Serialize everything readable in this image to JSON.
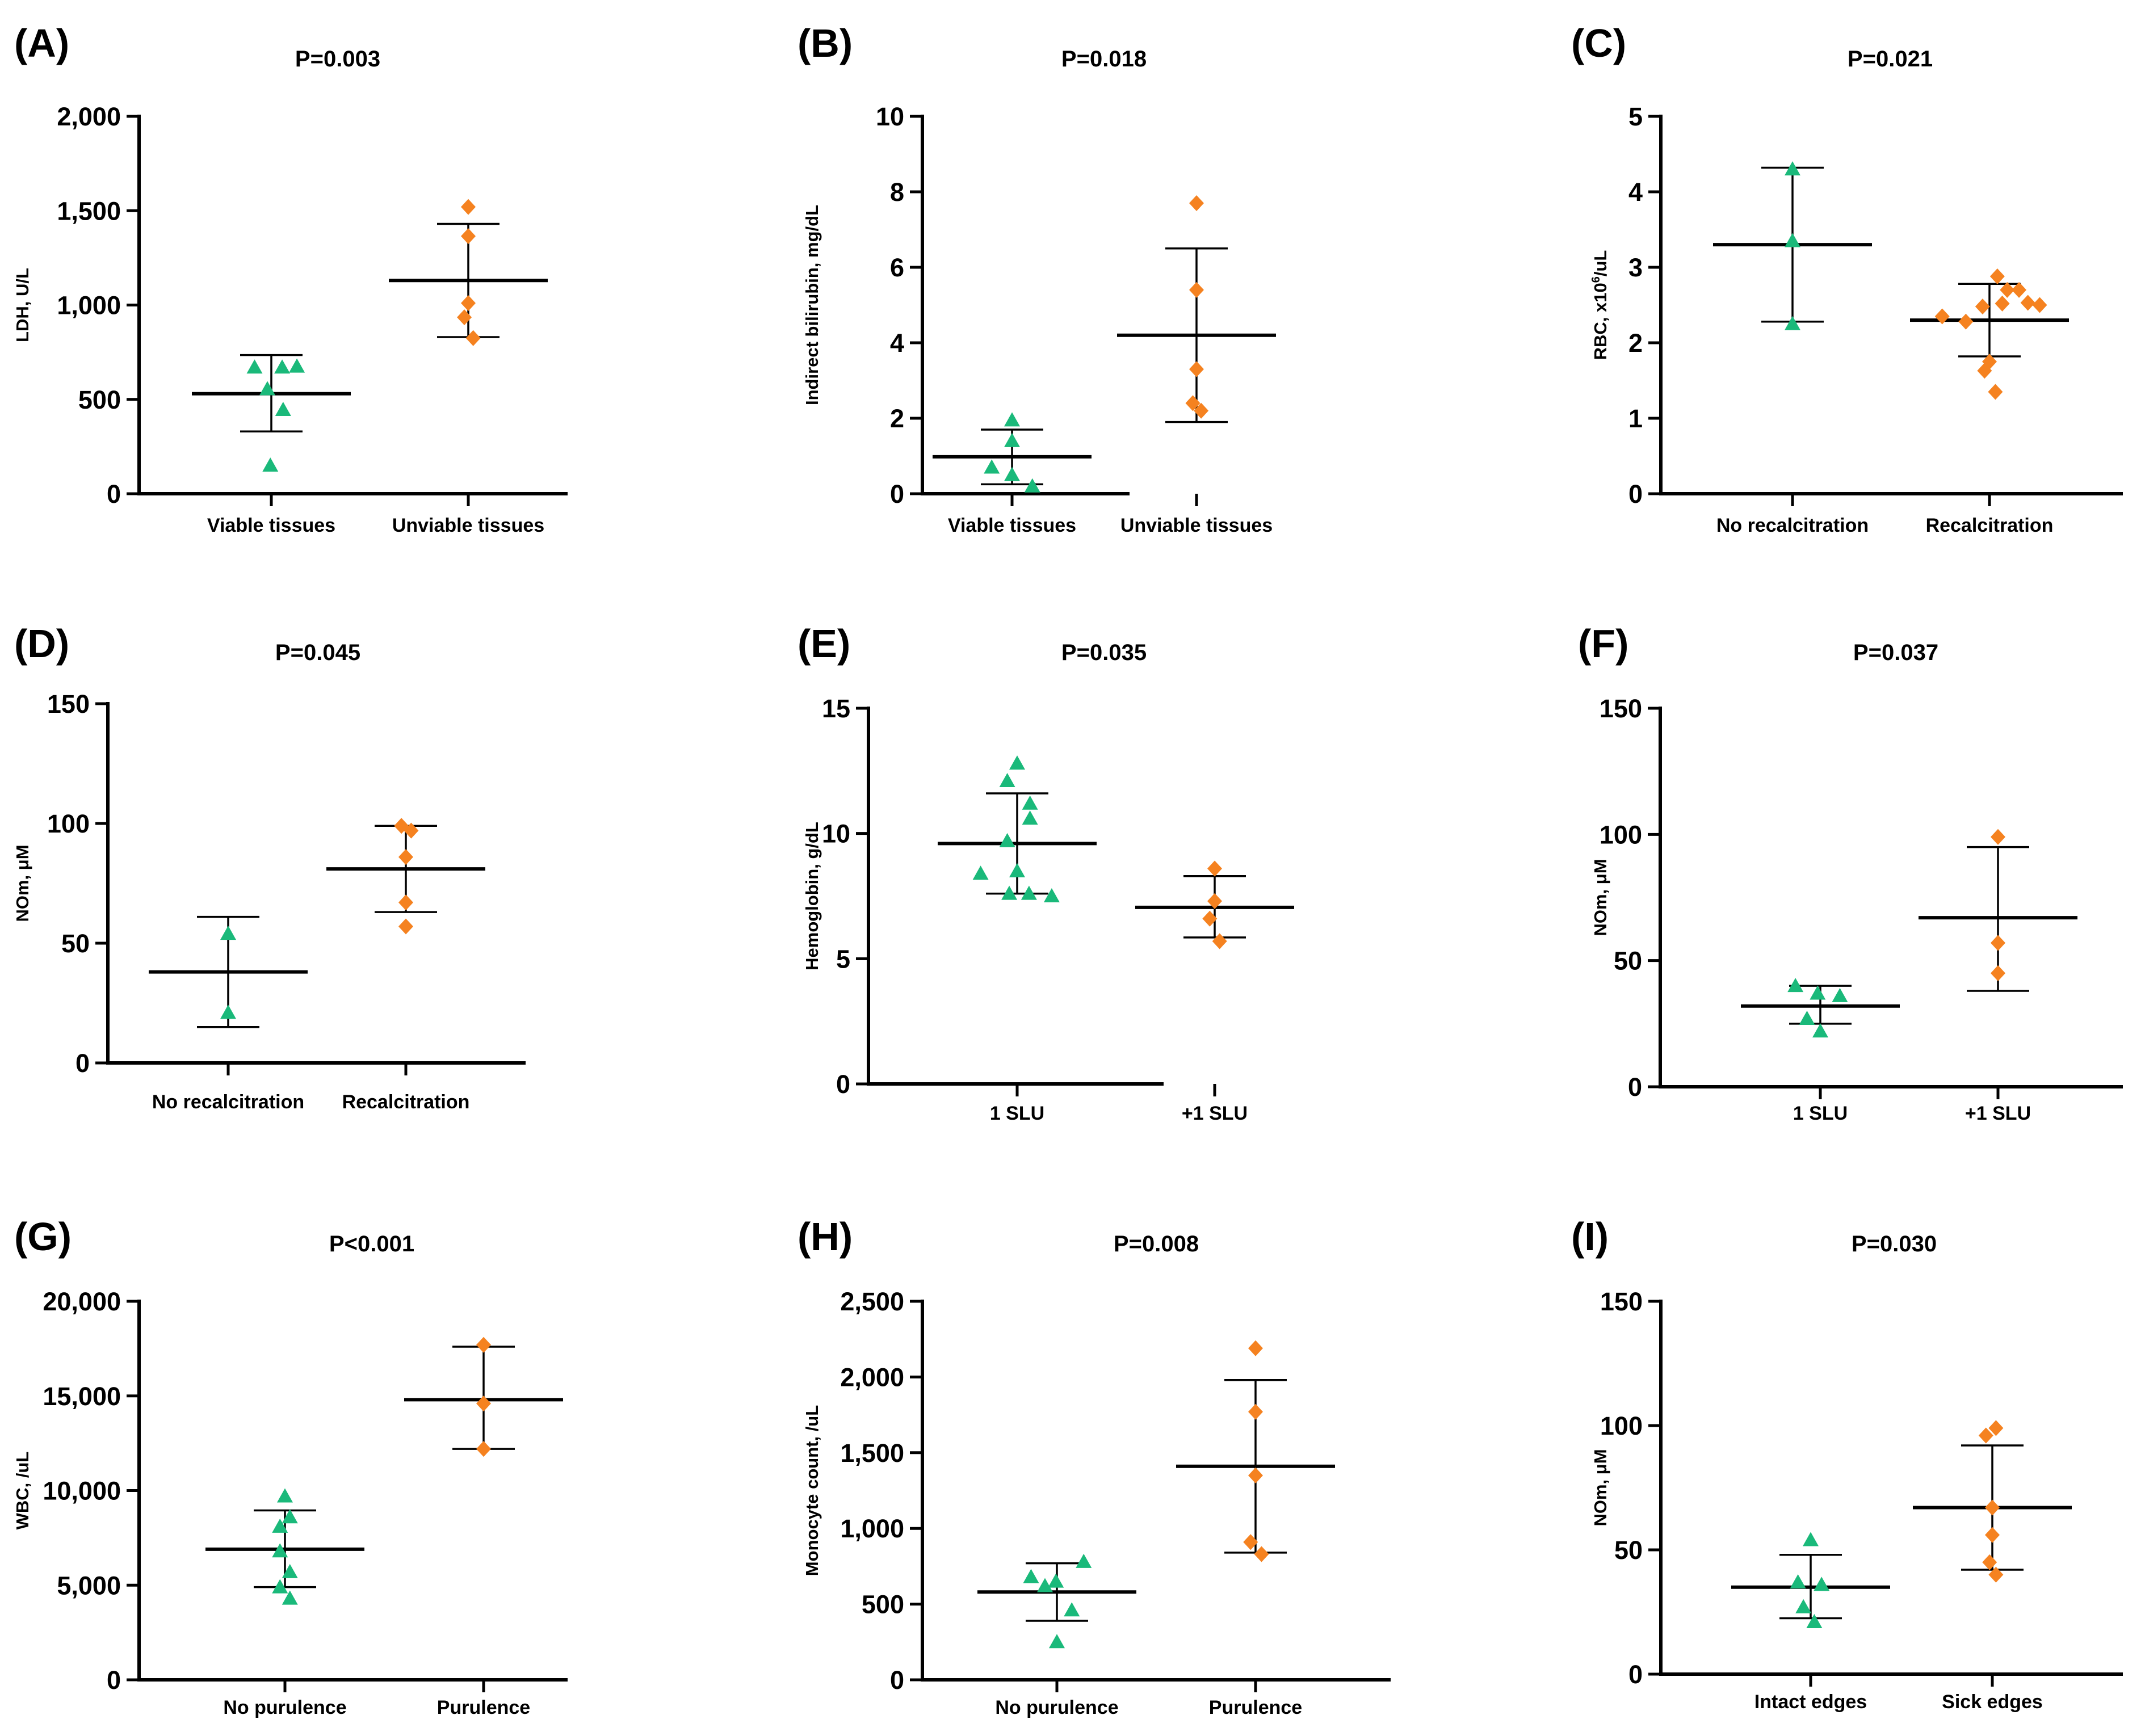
{
  "colors": {
    "green": "#1ab97a",
    "orange": "#f58220",
    "black": "#000000"
  },
  "chart_data": [
    {
      "id": "A",
      "letter": "(A)",
      "title": "P=0.003",
      "type": "scatter",
      "ylabel": "LDH, U/L",
      "ylabel_sup": "",
      "ylabel_after": "",
      "ylim": [
        0,
        2000
      ],
      "yticks": [
        0,
        500,
        1000,
        1500,
        2000
      ],
      "ytick_labels": [
        "0",
        "500",
        "1,000",
        "1,500",
        "2,000"
      ],
      "categories": [
        "Viable tissues",
        "Unviable tissues"
      ],
      "series": [
        {
          "name": "Viable tissues",
          "marker": "triangle",
          "color": "green",
          "mean": 530,
          "sd_low": 330,
          "sd_high": 735,
          "points": [
            [
              -0.17,
              670
            ],
            [
              0.11,
              670
            ],
            [
              0.26,
              675
            ],
            [
              -0.04,
              555
            ],
            [
              0.12,
              445
            ],
            [
              -0.01,
              150
            ]
          ]
        },
        {
          "name": "Unviable tissues",
          "marker": "diamond",
          "color": "orange",
          "mean": 1130,
          "sd_low": 830,
          "sd_high": 1430,
          "points": [
            [
              0.0,
              1520
            ],
            [
              0.0,
              1365
            ],
            [
              0.0,
              1010
            ],
            [
              -0.04,
              935
            ],
            [
              0.05,
              825
            ]
          ]
        }
      ]
    },
    {
      "id": "B",
      "letter": "(B)",
      "title": "P=0.018",
      "type": "scatter",
      "ylabel": "Indirect bilirubin, mg/dL",
      "ylabel_sup": "",
      "ylabel_after": "",
      "ylim": [
        0,
        10
      ],
      "yticks": [
        0,
        2,
        4,
        6,
        8,
        10
      ],
      "ytick_labels": [
        "0",
        "2",
        "4",
        "6",
        "8",
        "10"
      ],
      "categories": [
        "Viable tissues",
        "Unviable tissues"
      ],
      "series": [
        {
          "name": "Viable tissues",
          "marker": "triangle",
          "color": "green",
          "mean": 0.98,
          "sd_low": 0.25,
          "sd_high": 1.7,
          "points": [
            [
              0.0,
              1.95
            ],
            [
              0.0,
              1.4
            ],
            [
              -0.22,
              0.7
            ],
            [
              0.0,
              0.5
            ],
            [
              0.22,
              0.2
            ]
          ]
        },
        {
          "name": "Unviable tissues",
          "marker": "diamond",
          "color": "orange",
          "mean": 4.2,
          "sd_low": 1.9,
          "sd_high": 6.5,
          "points": [
            [
              0.0,
              7.7
            ],
            [
              0.0,
              5.4
            ],
            [
              0.0,
              3.3
            ],
            [
              -0.04,
              2.4
            ],
            [
              0.05,
              2.2
            ]
          ]
        }
      ]
    },
    {
      "id": "C",
      "letter": "(C)",
      "title": "P=0.021",
      "type": "scatter",
      "ylabel": "RBC, x10",
      "ylabel_sup": "6",
      "ylabel_after": "/uL",
      "ylim": [
        0,
        5
      ],
      "yticks": [
        0,
        1,
        2,
        3,
        4,
        5
      ],
      "ytick_labels": [
        "0",
        "1",
        "2",
        "3",
        "4",
        "5"
      ],
      "categories": [
        "No recalcitration",
        "Recalcitration"
      ],
      "series": [
        {
          "name": "No recalcitration",
          "marker": "triangle",
          "color": "green",
          "mean": 3.3,
          "sd_low": 2.28,
          "sd_high": 4.32,
          "points": [
            [
              0.0,
              4.3
            ],
            [
              0.0,
              3.35
            ],
            [
              0.0,
              2.25
            ]
          ]
        },
        {
          "name": "Recalcitration",
          "marker": "diamond",
          "color": "orange",
          "mean": 2.3,
          "sd_low": 1.82,
          "sd_high": 2.78,
          "points": [
            [
              0.08,
              2.88
            ],
            [
              0.18,
              2.7
            ],
            [
              0.3,
              2.7
            ],
            [
              -0.07,
              2.48
            ],
            [
              0.13,
              2.52
            ],
            [
              0.39,
              2.53
            ],
            [
              0.51,
              2.5
            ],
            [
              -0.48,
              2.35
            ],
            [
              -0.24,
              2.28
            ],
            [
              0.0,
              1.75
            ],
            [
              -0.05,
              1.63
            ],
            [
              0.06,
              1.35
            ]
          ]
        }
      ]
    },
    {
      "id": "D",
      "letter": "(D)",
      "title": "P=0.045",
      "type": "scatter",
      "ylabel": "NOm, μM",
      "ylabel_sup": "",
      "ylabel_after": "",
      "ylim": [
        0,
        150
      ],
      "yticks": [
        0,
        50,
        100,
        150
      ],
      "ytick_labels": [
        "0",
        "50",
        "100",
        "150"
      ],
      "categories": [
        "No recalcitration",
        "Recalcitration"
      ],
      "series": [
        {
          "name": "No recalcitration",
          "marker": "triangle",
          "color": "green",
          "mean": 38,
          "sd_low": 15,
          "sd_high": 61,
          "points": [
            [
              0.0,
              54
            ],
            [
              0.0,
              21
            ]
          ]
        },
        {
          "name": "Recalcitration",
          "marker": "diamond",
          "color": "orange",
          "mean": 81,
          "sd_low": 63,
          "sd_high": 99,
          "points": [
            [
              -0.05,
              99
            ],
            [
              0.06,
              97
            ],
            [
              0.0,
              86
            ],
            [
              0.0,
              67
            ],
            [
              0.0,
              57
            ]
          ]
        }
      ]
    },
    {
      "id": "E",
      "letter": "(E)",
      "title": "P=0.035",
      "type": "scatter",
      "ylabel": "Hemoglobin, g/dL",
      "ylabel_sup": "",
      "ylabel_after": "",
      "ylim": [
        0,
        15
      ],
      "yticks": [
        0,
        5,
        10,
        15
      ],
      "ytick_labels": [
        "0",
        "5",
        "10",
        "15"
      ],
      "categories": [
        "1 SLU",
        "+1 SLU"
      ],
      "series": [
        {
          "name": "1 SLU",
          "marker": "triangle",
          "color": "green",
          "mean": 9.6,
          "sd_low": 7.6,
          "sd_high": 11.6,
          "points": [
            [
              0.0,
              12.8
            ],
            [
              -0.1,
              12.1
            ],
            [
              0.13,
              11.2
            ],
            [
              0.13,
              10.6
            ],
            [
              -0.1,
              9.7
            ],
            [
              0.0,
              8.5
            ],
            [
              -0.37,
              8.4
            ],
            [
              -0.08,
              7.6
            ],
            [
              0.12,
              7.6
            ],
            [
              0.35,
              7.5
            ]
          ]
        },
        {
          "name": "+1 SLU",
          "marker": "diamond",
          "color": "orange",
          "mean": 7.05,
          "sd_low": 5.85,
          "sd_high": 8.3,
          "points": [
            [
              0.0,
              8.6
            ],
            [
              0.0,
              7.3
            ],
            [
              -0.05,
              6.6
            ],
            [
              0.05,
              5.7
            ]
          ]
        }
      ]
    },
    {
      "id": "F",
      "letter": "(F)",
      "title": "P=0.037",
      "type": "scatter",
      "ylabel": "NOm, μM",
      "ylabel_sup": "",
      "ylabel_after": "",
      "ylim": [
        0,
        150
      ],
      "yticks": [
        0,
        50,
        100,
        150
      ],
      "ytick_labels": [
        "0",
        "50",
        "100",
        "150"
      ],
      "categories": [
        "1 SLU",
        "+1 SLU"
      ],
      "series": [
        {
          "name": "1 SLU",
          "marker": "triangle",
          "color": "green",
          "mean": 32,
          "sd_low": 25,
          "sd_high": 40,
          "points": [
            [
              -0.28,
              40
            ],
            [
              -0.03,
              37
            ],
            [
              0.22,
              36
            ],
            [
              -0.15,
              27
            ],
            [
              0.0,
              22
            ]
          ]
        },
        {
          "name": "+1 SLU",
          "marker": "diamond",
          "color": "orange",
          "mean": 67,
          "sd_low": 38,
          "sd_high": 95,
          "points": [
            [
              0.0,
              99
            ],
            [
              0.0,
              57
            ],
            [
              0.0,
              45
            ]
          ]
        }
      ]
    },
    {
      "id": "G",
      "letter": "(G)",
      "title": "P<0.001",
      "type": "scatter",
      "ylabel": "WBC, /uL",
      "ylabel_sup": "",
      "ylabel_after": "",
      "ylim": [
        0,
        20000
      ],
      "yticks": [
        0,
        5000,
        10000,
        15000,
        20000
      ],
      "ytick_labels": [
        "0",
        "5,000",
        "10,000",
        "15,000",
        "20,000"
      ],
      "categories": [
        "No purulence",
        "Purulence"
      ],
      "series": [
        {
          "name": "No purulence",
          "marker": "triangle",
          "color": "green",
          "mean": 6900,
          "sd_low": 4900,
          "sd_high": 8950,
          "points": [
            [
              0.0,
              9700
            ],
            [
              0.05,
              8600
            ],
            [
              -0.05,
              8100
            ],
            [
              -0.05,
              6800
            ],
            [
              0.05,
              5700
            ],
            [
              -0.05,
              4900
            ],
            [
              0.05,
              4300
            ]
          ]
        },
        {
          "name": "Purulence",
          "marker": "diamond",
          "color": "orange",
          "mean": 14800,
          "sd_low": 12200,
          "sd_high": 17600,
          "points": [
            [
              0.0,
              17700
            ],
            [
              0.0,
              14600
            ],
            [
              0.0,
              12200
            ]
          ]
        }
      ]
    },
    {
      "id": "H",
      "letter": "(H)",
      "title": "P=0.008",
      "type": "scatter",
      "ylabel": "Monocyte count, /uL",
      "ylabel_sup": "",
      "ylabel_after": "",
      "ylim": [
        0,
        2500
      ],
      "yticks": [
        0,
        500,
        1000,
        1500,
        2000,
        2500
      ],
      "ytick_labels": [
        "0",
        "500",
        "1,000",
        "1,500",
        "2,000",
        "2,500"
      ],
      "categories": [
        "No purulence",
        "Purulence"
      ],
      "series": [
        {
          "name": "No purulence",
          "marker": "triangle",
          "color": "green",
          "mean": 580,
          "sd_low": 390,
          "sd_high": 770,
          "points": [
            [
              0.27,
              780
            ],
            [
              -0.26,
              680
            ],
            [
              -0.12,
              620
            ],
            [
              -0.01,
              650
            ],
            [
              0.15,
              460
            ],
            [
              0.0,
              250
            ]
          ]
        },
        {
          "name": "Purulence",
          "marker": "diamond",
          "color": "orange",
          "mean": 1410,
          "sd_low": 840,
          "sd_high": 1980,
          "points": [
            [
              0.0,
              2190
            ],
            [
              0.0,
              1770
            ],
            [
              0.0,
              1350
            ],
            [
              -0.05,
              910
            ],
            [
              0.06,
              830
            ]
          ]
        }
      ]
    },
    {
      "id": "I",
      "letter": "(I)",
      "title": "P=0.030",
      "type": "scatter",
      "ylabel": "NOm, μM",
      "ylabel_sup": "",
      "ylabel_after": "",
      "ylim": [
        0,
        150
      ],
      "yticks": [
        0,
        50,
        100,
        150
      ],
      "ytick_labels": [
        "0",
        "50",
        "100",
        "150"
      ],
      "categories": [
        "Intact edges",
        "Sick edges"
      ],
      "series": [
        {
          "name": "Intact edges",
          "marker": "triangle",
          "color": "green",
          "mean": 35,
          "sd_low": 22.5,
          "sd_high": 48,
          "points": [
            [
              0.0,
              54
            ],
            [
              -0.14,
              37
            ],
            [
              0.12,
              36
            ],
            [
              -0.08,
              27
            ],
            [
              0.04,
              21
            ]
          ]
        },
        {
          "name": "Sick edges",
          "marker": "diamond",
          "color": "orange",
          "mean": 67,
          "sd_low": 42,
          "sd_high": 92,
          "points": [
            [
              -0.07,
              96
            ],
            [
              0.04,
              99
            ],
            [
              0.0,
              67
            ],
            [
              0.0,
              56
            ],
            [
              -0.03,
              45
            ],
            [
              0.04,
              40
            ]
          ]
        }
      ]
    }
  ]
}
